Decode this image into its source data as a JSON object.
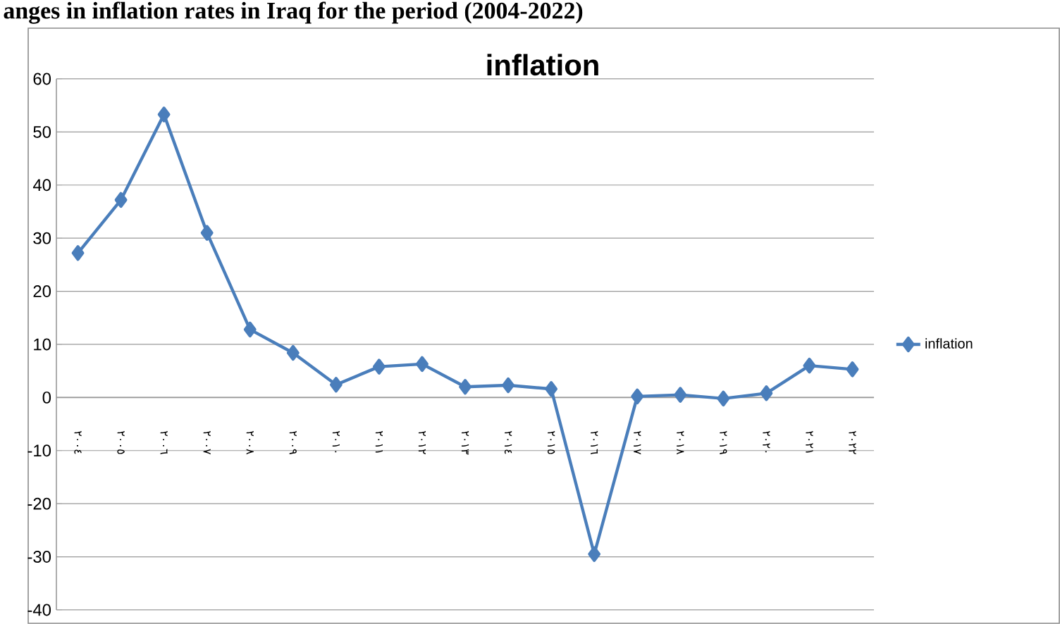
{
  "chart_data": {
    "type": "line",
    "title": "inflation",
    "annotations": [
      "anges in inflation rates in Iraq for the period (2004-2022)"
    ],
    "categories": [
      "٢٠٠٤",
      "٢٠٠٥",
      "٢٠٠٦",
      "٢٠٠٧",
      "٢٠٠٨",
      "٢٠٠٩",
      "٢٠١٠",
      "٢٠١١",
      "٢٠١٢",
      "٢٠١٣",
      "٢٠١٤",
      "٢٠١٥",
      "٢٠١٦",
      "٢٠١٧",
      "٢٠١٨",
      "٢٠١٩",
      "٢٠٢٠",
      "٢٠٢١",
      "٢٠٢٢"
    ],
    "series": [
      {
        "name": "inflation",
        "color": "#4a7ebb",
        "values": [
          27.2,
          37.2,
          53.3,
          31,
          12.8,
          8.4,
          2.4,
          5.8,
          6.3,
          2,
          2.3,
          1.6,
          -29.5,
          0.2,
          0.5,
          -0.2,
          0.8,
          6,
          5.3
        ]
      }
    ],
    "ylim": [
      -40,
      60
    ],
    "yticks": [
      -40,
      -30,
      -20,
      -10,
      0,
      10,
      20,
      30,
      40,
      50,
      60
    ],
    "grid": "y",
    "legend": "right",
    "marker": "diamond",
    "line_style": "solid"
  }
}
